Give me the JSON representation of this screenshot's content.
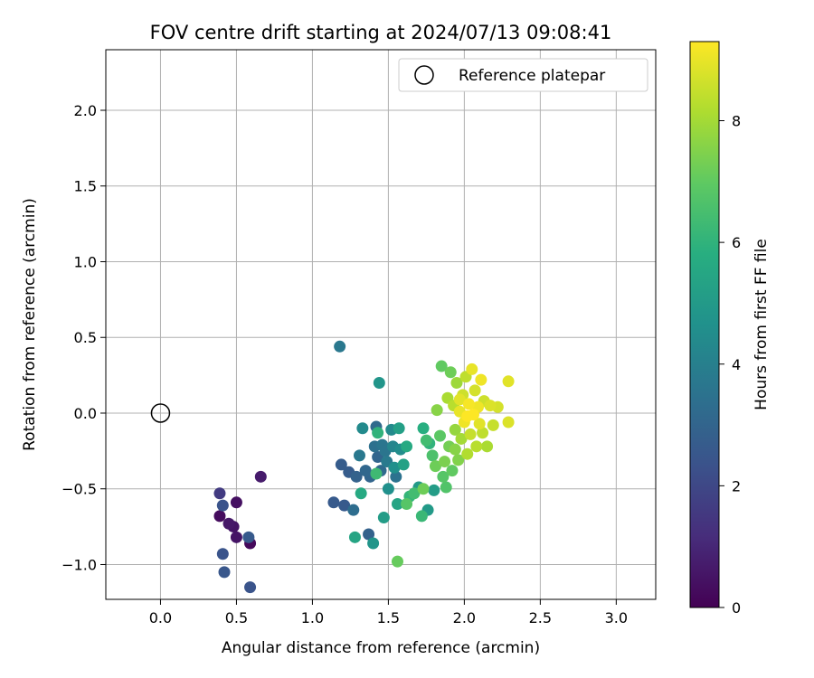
{
  "chart_data": {
    "type": "scatter",
    "title": "FOV centre drift starting at 2024/07/13 09:08:41",
    "xlabel": "Angular distance from reference (arcmin)",
    "ylabel": "Rotation from reference (arcmin)",
    "xlim": [
      -0.36,
      3.26
    ],
    "ylim": [
      -1.23,
      2.4
    ],
    "xticks": [
      "0.0",
      "0.5",
      "1.0",
      "1.5",
      "2.0",
      "2.5",
      "3.0"
    ],
    "yticks": [
      "−1.0",
      "−0.5",
      "0.0",
      "0.5",
      "1.0",
      "1.5",
      "2.0"
    ],
    "grid": true,
    "legend": {
      "position": "top-right",
      "entries": [
        "Reference platepar"
      ]
    },
    "reference_point": {
      "x": 0.0,
      "y": 0.0,
      "label": "Reference platepar",
      "marker": "open-circle"
    },
    "colorbar": {
      "label": "Hours from first FF file",
      "range": [
        0,
        9.3
      ],
      "ticks": [
        "0",
        "2",
        "4",
        "6",
        "8"
      ],
      "colormap": "viridis"
    },
    "series": [
      {
        "points": [
          [
            0.39,
            -0.53,
            1.6
          ],
          [
            0.39,
            -0.68,
            0.3
          ],
          [
            0.41,
            -0.61,
            2.4
          ],
          [
            0.41,
            -0.93,
            2.4
          ],
          [
            0.42,
            -1.05,
            2.5
          ],
          [
            0.45,
            -0.73,
            0.6
          ],
          [
            0.48,
            -0.75,
            0.5
          ],
          [
            0.5,
            -0.59,
            0.4
          ],
          [
            0.5,
            -0.82,
            0.5
          ],
          [
            0.58,
            -0.82,
            2.6
          ],
          [
            0.59,
            -0.86,
            0.2
          ],
          [
            0.59,
            -1.15,
            2.4
          ],
          [
            0.66,
            -0.42,
            0.7
          ],
          [
            1.18,
            0.44,
            3.7
          ],
          [
            1.14,
            -0.59,
            2.6
          ],
          [
            1.19,
            -0.34,
            2.7
          ],
          [
            1.21,
            -0.61,
            2.6
          ],
          [
            1.24,
            -0.39,
            2.7
          ],
          [
            1.27,
            -0.64,
            3.3
          ],
          [
            1.29,
            -0.42,
            2.9
          ],
          [
            1.31,
            -0.28,
            3.7
          ],
          [
            1.33,
            -0.1,
            4.4
          ],
          [
            1.35,
            -0.38,
            3.1
          ],
          [
            1.37,
            -0.8,
            2.9
          ],
          [
            1.38,
            -0.42,
            3.0
          ],
          [
            1.4,
            -0.86,
            4.8
          ],
          [
            1.41,
            -0.22,
            3.4
          ],
          [
            1.42,
            -0.09,
            3.2
          ],
          [
            1.43,
            -0.29,
            3.0
          ],
          [
            1.44,
            0.2,
            4.8
          ],
          [
            1.45,
            -0.38,
            3.2
          ],
          [
            1.46,
            -0.21,
            3.6
          ],
          [
            1.47,
            -0.69,
            5.1
          ],
          [
            1.48,
            -0.25,
            3.6
          ],
          [
            1.49,
            -0.32,
            3.8
          ],
          [
            1.5,
            -0.5,
            4.6
          ],
          [
            1.52,
            -0.11,
            4.4
          ],
          [
            1.53,
            -0.22,
            4.2
          ],
          [
            1.54,
            -0.36,
            4.6
          ],
          [
            1.55,
            -0.42,
            3.5
          ],
          [
            1.56,
            -0.6,
            5.4
          ],
          [
            1.57,
            -0.1,
            5.2
          ],
          [
            1.58,
            -0.24,
            4.5
          ],
          [
            1.6,
            -0.34,
            5.3
          ],
          [
            1.62,
            -0.22,
            5.6
          ],
          [
            1.64,
            -0.55,
            6.1
          ],
          [
            1.67,
            -0.53,
            6.4
          ],
          [
            1.7,
            -0.49,
            5.0
          ],
          [
            1.72,
            -0.68,
            6.2
          ],
          [
            1.73,
            -0.1,
            5.8
          ],
          [
            1.75,
            -0.18,
            6.4
          ],
          [
            1.76,
            -0.64,
            5.0
          ],
          [
            1.77,
            -0.2,
            6.0
          ],
          [
            1.79,
            -0.28,
            6.6
          ],
          [
            1.8,
            -0.51,
            5.1
          ],
          [
            1.81,
            -0.35,
            7.2
          ],
          [
            1.82,
            0.02,
            7.6
          ],
          [
            1.84,
            -0.15,
            6.9
          ],
          [
            1.85,
            0.31,
            7.0
          ],
          [
            1.86,
            -0.42,
            6.8
          ],
          [
            1.87,
            -0.32,
            7.4
          ],
          [
            1.88,
            -0.49,
            6.7
          ],
          [
            1.89,
            0.1,
            8.1
          ],
          [
            1.9,
            -0.22,
            7.3
          ],
          [
            1.91,
            0.27,
            7.2
          ],
          [
            1.92,
            -0.38,
            7.0
          ],
          [
            1.93,
            0.05,
            8.3
          ],
          [
            1.94,
            -0.11,
            7.8
          ],
          [
            1.95,
            0.2,
            7.9
          ],
          [
            1.96,
            -0.31,
            7.5
          ],
          [
            1.97,
            0.01,
            9.0
          ],
          [
            1.98,
            -0.17,
            8.0
          ],
          [
            1.99,
            0.12,
            8.6
          ],
          [
            2.0,
            -0.06,
            9.1
          ],
          [
            2.01,
            0.24,
            8.4
          ],
          [
            2.02,
            -0.27,
            8.2
          ],
          [
            2.03,
            0.06,
            9.2
          ],
          [
            2.04,
            -0.14,
            8.5
          ],
          [
            2.05,
            0.29,
            9.0
          ],
          [
            2.06,
            -0.01,
            9.3
          ],
          [
            2.07,
            0.15,
            8.7
          ],
          [
            2.08,
            -0.22,
            8.3
          ],
          [
            2.09,
            0.04,
            9.1
          ],
          [
            2.1,
            -0.07,
            8.9
          ],
          [
            2.11,
            0.22,
            9.1
          ],
          [
            2.12,
            -0.13,
            8.4
          ],
          [
            2.13,
            0.08,
            8.6
          ],
          [
            2.15,
            -0.22,
            8.1
          ],
          [
            2.17,
            0.05,
            8.8
          ],
          [
            2.19,
            -0.08,
            8.5
          ],
          [
            2.22,
            0.04,
            8.7
          ],
          [
            2.29,
            0.21,
            8.9
          ],
          [
            2.29,
            -0.06,
            8.8
          ],
          [
            1.56,
            -0.98,
            7.1
          ],
          [
            1.28,
            -0.82,
            5.4
          ],
          [
            1.32,
            -0.53,
            5.6
          ],
          [
            1.42,
            -0.4,
            6.3
          ],
          [
            1.43,
            -0.13,
            6.0
          ],
          [
            1.62,
            -0.6,
            6.8
          ],
          [
            1.73,
            -0.5,
            7.2
          ],
          [
            1.94,
            -0.24,
            7.6
          ],
          [
            1.97,
            0.09,
            8.9
          ],
          [
            2.02,
            -0.02,
            9.3
          ]
        ]
      }
    ]
  }
}
